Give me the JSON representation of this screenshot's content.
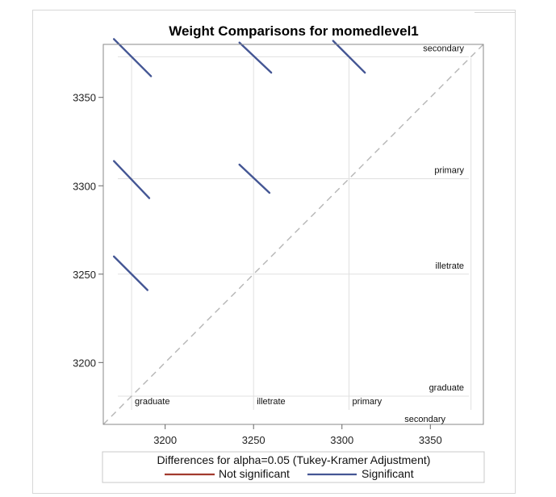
{
  "chart_data": {
    "type": "diffogram",
    "title": "Weight Comparisons for momedlevel1",
    "xlim": [
      3165,
      3380
    ],
    "ylim": [
      3165,
      3380
    ],
    "x_ticks": [
      3200,
      3250,
      3300,
      3350
    ],
    "y_ticks": [
      3200,
      3250,
      3300,
      3350
    ],
    "levels": [
      {
        "name": "graduate",
        "mean": 3181
      },
      {
        "name": "illetrate",
        "mean": 3250
      },
      {
        "name": "primary",
        "mean": 3304
      },
      {
        "name": "secondary",
        "mean": 3373
      }
    ],
    "comparisons": [
      {
        "row": "secondary",
        "col": "graduate",
        "x1": 3171,
        "y1": 3383,
        "x2": 3192,
        "y2": 3362,
        "significant": true
      },
      {
        "row": "secondary",
        "col": "illetrate",
        "x1": 3242,
        "y1": 3381,
        "x2": 3260,
        "y2": 3364,
        "significant": true
      },
      {
        "row": "secondary",
        "col": "primary",
        "x1": 3295,
        "y1": 3382,
        "x2": 3313,
        "y2": 3364,
        "significant": true
      },
      {
        "row": "primary",
        "col": "graduate",
        "x1": 3171,
        "y1": 3314,
        "x2": 3191,
        "y2": 3293,
        "significant": true
      },
      {
        "row": "primary",
        "col": "illetrate",
        "x1": 3242,
        "y1": 3312,
        "x2": 3259,
        "y2": 3296,
        "significant": true
      },
      {
        "row": "illetrate",
        "col": "graduate",
        "x1": 3171,
        "y1": 3260,
        "x2": 3190,
        "y2": 3241,
        "significant": true
      }
    ],
    "legend": {
      "title": "Differences for alpha=0.05 (Tukey-Kramer Adjustment)",
      "items": [
        {
          "label": "Not significant",
          "color": "#a23a2e"
        },
        {
          "label": "Significant",
          "color": "#445694"
        }
      ],
      "placement": "bottom"
    },
    "colors": {
      "reference_line": "#b5b5b5",
      "grid": "#e0e0e0",
      "axis": "#8a8a8a"
    }
  }
}
